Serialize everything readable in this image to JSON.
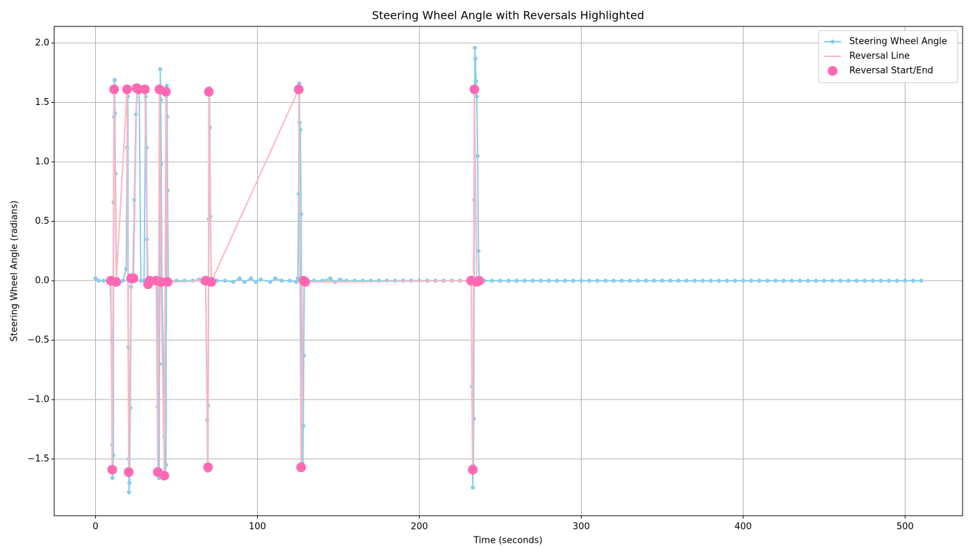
{
  "chart_data": {
    "type": "line",
    "title": "Steering Wheel Angle with Reversals Highlighted",
    "x_label": "Time (seconds)",
    "y_label": "Steering Wheel Angle (radians)",
    "xlim": [
      -25.5,
      535.5
    ],
    "ylim": [
      -1.977,
      2.14
    ],
    "xticks": [
      0,
      100,
      200,
      300,
      400,
      500
    ],
    "yticks": [
      {
        "value": -1.5,
        "label": "−1.5"
      },
      {
        "value": -1.0,
        "label": "−1.0"
      },
      {
        "value": -0.5,
        "label": "−0.5"
      },
      {
        "value": 0,
        "label": "0.0"
      },
      {
        "value": 0.5,
        "label": "0.5"
      },
      {
        "value": 1.0,
        "label": "1.0"
      },
      {
        "value": 1.5,
        "label": "1.5"
      },
      {
        "value": 2.0,
        "label": "2.0"
      }
    ],
    "grid": true,
    "legend": "upper right",
    "series": [
      {
        "name": "Steering Wheel Angle",
        "type": "line",
        "marker": true,
        "color": "#87ceeb",
        "x": [
          0,
          2,
          5,
          8,
          9,
          10,
          10.3,
          10.5,
          11,
          11.2,
          11.5,
          11.8,
          12,
          12.3,
          13,
          15,
          17,
          19,
          19.5,
          20,
          20.3,
          20.5,
          20.7,
          21,
          21.5,
          22,
          23,
          24,
          25,
          26,
          27,
          28,
          30,
          31,
          31.5,
          31.8,
          32,
          34,
          36,
          38,
          38.5,
          39,
          39.3,
          39.5,
          40,
          40.3,
          40.6,
          41,
          42,
          42.5,
          43,
          43.5,
          44,
          44.2,
          44.5,
          45,
          50,
          55,
          60,
          64,
          66,
          68,
          69,
          69.3,
          69.6,
          70,
          70.3,
          70.6,
          71,
          71.5,
          75,
          80,
          85,
          89,
          92,
          96,
          99,
          102,
          108,
          111,
          115,
          120,
          124,
          125,
          125.5,
          125.8,
          126,
          126.5,
          127,
          127.3,
          127.6,
          128,
          128.3,
          128.6,
          129,
          135,
          140,
          145,
          148,
          151,
          155,
          160,
          165,
          170,
          175,
          180,
          185,
          190,
          195,
          200,
          205,
          210,
          215,
          220,
          225,
          230,
          232,
          232.5,
          233,
          233.3,
          233.6,
          234,
          234.3,
          234.6,
          235,
          235.5,
          236,
          236.5,
          237,
          240,
          245,
          250,
          255,
          260,
          265,
          270,
          275,
          280,
          285,
          290,
          295,
          300,
          305,
          310,
          315,
          320,
          325,
          330,
          335,
          340,
          345,
          350,
          355,
          360,
          365,
          370,
          375,
          380,
          385,
          390,
          395,
          400,
          405,
          410,
          415,
          420,
          425,
          430,
          435,
          440,
          445,
          450,
          455,
          460,
          465,
          470,
          475,
          480,
          485,
          490,
          495,
          500,
          505,
          510
        ],
        "values": [
          0.02,
          0,
          0,
          0,
          0,
          -0.5,
          -1.38,
          -1.66,
          -1.47,
          0.66,
          1.38,
          1.69,
          1.41,
          0.9,
          0,
          -0.01,
          0,
          0.1,
          1.12,
          1.55,
          -0.56,
          -1.5,
          -1.78,
          -1.7,
          -1.07,
          -0.05,
          0.02,
          0.68,
          1.4,
          1.62,
          1.6,
          0,
          0,
          1.55,
          1.12,
          0.35,
          0,
          0,
          0,
          0,
          -1.06,
          -1.62,
          -1.66,
          -0.7,
          1.78,
          1.52,
          0.98,
          0,
          -0.7,
          -1.31,
          -1.64,
          -1.55,
          1.64,
          1.38,
          0.76,
          0,
          0,
          0,
          0,
          0.01,
          -0.01,
          0,
          -1.17,
          -1.6,
          -1.05,
          0.52,
          1.62,
          1.29,
          0.54,
          0,
          0,
          0,
          -0.01,
          0.02,
          -0.01,
          0.02,
          -0.01,
          0.01,
          -0.01,
          0.02,
          0,
          0,
          -0.01,
          0.02,
          0.73,
          1.66,
          1.33,
          1.27,
          0.56,
          -0.96,
          -1.53,
          -1.59,
          -1.22,
          -0.63,
          0,
          0,
          0,
          0.02,
          -0.01,
          0.01,
          0,
          0,
          0,
          0,
          0,
          0,
          0,
          0,
          0,
          0,
          0,
          0,
          0,
          0,
          0,
          0,
          0,
          -0.89,
          -1.74,
          -1.55,
          -1.16,
          0.68,
          1.96,
          1.87,
          1.68,
          1.55,
          1.05,
          0.25,
          0,
          0,
          0,
          0,
          0,
          0,
          0,
          0,
          0,
          0,
          0,
          0,
          0,
          0,
          0,
          0,
          0,
          0,
          0,
          0,
          0,
          0,
          0,
          0,
          0,
          0,
          0,
          0,
          0,
          0,
          0,
          0,
          0,
          0,
          0,
          0,
          0,
          0,
          0,
          0,
          0,
          0,
          0,
          0,
          0,
          0,
          0,
          0,
          0,
          0,
          0,
          0,
          0,
          0,
          0,
          0
        ]
      },
      {
        "name": "Reversal Line",
        "type": "line",
        "marker": false,
        "color": "#ffb6c1",
        "x": [
          9.5,
          10.3,
          11.5,
          12.8,
          19.5,
          20.5,
          22,
          23.5,
          25.5,
          26.5,
          30.5,
          32.5,
          33.5,
          37.5,
          38.5,
          39.5,
          40.5,
          42.5,
          43.5,
          44.5,
          68,
          69.5,
          70,
          71.5,
          125.5,
          127,
          128.5,
          129.5,
          232,
          233,
          234,
          235.5,
          237
        ],
        "values": [
          0,
          -1.59,
          1.61,
          -0.01,
          1.61,
          -1.61,
          0.02,
          0.02,
          1.62,
          1.61,
          1.61,
          -0.03,
          0,
          0,
          -1.61,
          1.61,
          -0.01,
          -1.64,
          1.59,
          -0.01,
          0,
          -1.57,
          1.59,
          -0.01,
          1.61,
          -1.57,
          0,
          -0.01,
          0,
          -1.59,
          1.61,
          -0.01,
          0
        ]
      },
      {
        "name": "Reversal Start/End",
        "type": "scatter",
        "color": "#ff69b4",
        "x": [
          9.5,
          10.3,
          11.5,
          12.8,
          19.5,
          20.5,
          22,
          23.5,
          25.5,
          26.5,
          30.5,
          32.5,
          33.5,
          37.5,
          38.5,
          39.5,
          40.5,
          42.5,
          43.5,
          44.5,
          68,
          69.5,
          70,
          71.5,
          125.5,
          127,
          128.5,
          129.5,
          232,
          233,
          234,
          235.5,
          237
        ],
        "values": [
          0,
          -1.59,
          1.61,
          -0.01,
          1.61,
          -1.61,
          0.02,
          0.02,
          1.62,
          1.61,
          1.61,
          -0.03,
          0,
          0,
          -1.61,
          1.61,
          -0.01,
          -1.64,
          1.59,
          -0.01,
          0,
          -1.57,
          1.59,
          -0.01,
          1.61,
          -1.57,
          0,
          -0.01,
          0,
          -1.59,
          1.61,
          -0.01,
          0
        ]
      }
    ]
  }
}
